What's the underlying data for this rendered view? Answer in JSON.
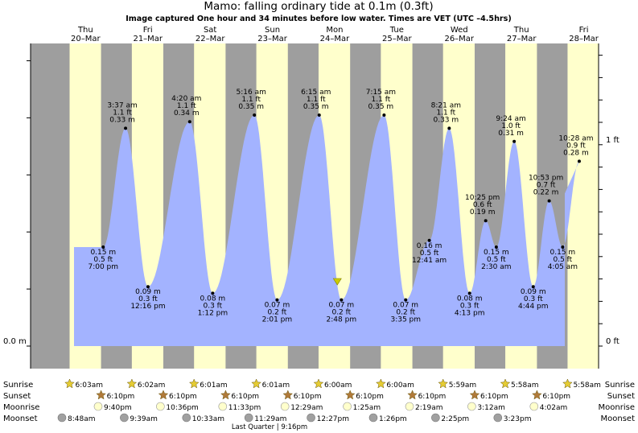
{
  "title": "Mamo: falling  ordinary tide at 0.1m (0.3ft)",
  "subtitle": "Image captured One hour and 34 minutes before low water. Times are VET (UTC –4.5hrs)",
  "colors": {
    "day": "#ffffcc",
    "night": "#9e9e9e",
    "water": "#a3b3ff",
    "header_red": "#ff0000",
    "sun": "#e5cc33",
    "sunset": "#b07a3a",
    "moonrise": "#ffffcc",
    "moonset": "#a0a0a0",
    "now_marker": "#cccc00"
  },
  "chart_data": {
    "type": "area",
    "title": "Mamo: falling  ordinary tide at 0.1m (0.3ft)",
    "subtitle": "Image captured One hour and 34 minutes before low water. Times are VET (UTC –4.5hrs)",
    "y_unit": "m",
    "ylim": [
      -0.02,
      0.45
    ],
    "left_axis_ticks": [
      {
        "value": 0.0,
        "label": "0.0 m"
      }
    ],
    "right_axis_ticks": [
      {
        "value": 0.0,
        "label": "0 ft"
      },
      {
        "value": 0.305,
        "label": "1 ft"
      }
    ],
    "days": [
      {
        "dow": "Thu",
        "date": "20–Mar"
      },
      {
        "dow": "Fri",
        "date": "21–Mar"
      },
      {
        "dow": "Sat",
        "date": "22–Mar"
      },
      {
        "dow": "Sun",
        "date": "23–Mar"
      },
      {
        "dow": "Mon",
        "date": "24–Mar"
      },
      {
        "dow": "Tue",
        "date": "25–Mar"
      },
      {
        "dow": "Wed",
        "date": "26–Mar"
      },
      {
        "dow": "Thu",
        "date": "27–Mar"
      },
      {
        "dow": "Fri",
        "date": "28–Mar"
      }
    ],
    "series": [
      {
        "values": [
          {
            "date": "20-Mar",
            "time": "7:00 pm",
            "m": 0.15,
            "m_label": "0.15 m",
            "ft_label": "0.5 ft",
            "time_label": "7:00 pm",
            "kind": "low"
          },
          {
            "date": "21-Mar",
            "time": "3:37 am",
            "m": 0.33,
            "m_label": "0.33 m",
            "ft_label": "1.1 ft",
            "time_label": "3:37 am",
            "kind": "high"
          },
          {
            "date": "21-Mar",
            "time": "12:16 pm",
            "m": 0.09,
            "m_label": "0.09 m",
            "ft_label": "0.3 ft",
            "time_label": "12:16 pm",
            "kind": "low"
          },
          {
            "date": "22-Mar",
            "time": "4:20 am",
            "m": 0.34,
            "m_label": "0.34 m",
            "ft_label": "1.1 ft",
            "time_label": "4:20 am",
            "kind": "high"
          },
          {
            "date": "22-Mar",
            "time": "1:12 pm",
            "m": 0.08,
            "m_label": "0.08 m",
            "ft_label": "0.3 ft",
            "time_label": "1:12 pm",
            "kind": "low"
          },
          {
            "date": "23-Mar",
            "time": "5:16 am",
            "m": 0.35,
            "m_label": "0.35 m",
            "ft_label": "1.1 ft",
            "time_label": "5:16 am",
            "kind": "high"
          },
          {
            "date": "23-Mar",
            "time": "2:01 pm",
            "m": 0.07,
            "m_label": "0.07 m",
            "ft_label": "0.2 ft",
            "time_label": "2:01 pm",
            "kind": "low"
          },
          {
            "date": "24-Mar",
            "time": "6:15 am",
            "m": 0.35,
            "m_label": "0.35 m",
            "ft_label": "1.1 ft",
            "time_label": "6:15 am",
            "kind": "high"
          },
          {
            "date": "24-Mar",
            "time": "2:48 pm",
            "m": 0.07,
            "m_label": "0.07 m",
            "ft_label": "0.2 ft",
            "time_label": "2:48 pm",
            "kind": "low"
          },
          {
            "date": "25-Mar",
            "time": "7:15 am",
            "m": 0.35,
            "m_label": "0.35 m",
            "ft_label": "1.1 ft",
            "time_label": "7:15 am",
            "kind": "high"
          },
          {
            "date": "25-Mar",
            "time": "3:35 pm",
            "m": 0.07,
            "m_label": "0.07 m",
            "ft_label": "0.2 ft",
            "time_label": "3:35 pm",
            "kind": "low"
          },
          {
            "date": "26-Mar",
            "time": "12:41 am",
            "m": 0.16,
            "m_label": "0.16 m",
            "ft_label": "0.5 ft",
            "time_label": "12:41 am",
            "kind": "low"
          },
          {
            "date": "26-Mar",
            "time": "8:21 am",
            "m": 0.33,
            "m_label": "0.33 m",
            "ft_label": "1.1 ft",
            "time_label": "8:21 am",
            "kind": "high"
          },
          {
            "date": "26-Mar",
            "time": "4:13 pm",
            "m": 0.08,
            "m_label": "0.08 m",
            "ft_label": "0.3 ft",
            "time_label": "4:13 pm",
            "kind": "low"
          },
          {
            "date": "26-Mar",
            "time": "10:25 pm",
            "m": 0.19,
            "m_label": "0.19 m",
            "ft_label": "0.6 ft",
            "time_label": "10:25 pm",
            "kind": "high"
          },
          {
            "date": "27-Mar",
            "time": "2:30 am",
            "m": 0.15,
            "m_label": "0.15 m",
            "ft_label": "0.5 ft",
            "time_label": "2:30 am",
            "kind": "low"
          },
          {
            "date": "27-Mar",
            "time": "9:24 am",
            "m": 0.31,
            "m_label": "0.31 m",
            "ft_label": "1.0 ft",
            "time_label": "9:24 am",
            "kind": "high"
          },
          {
            "date": "27-Mar",
            "time": "4:44 pm",
            "m": 0.09,
            "m_label": "0.09 m",
            "ft_label": "0.3 ft",
            "time_label": "4:44 pm",
            "kind": "low"
          },
          {
            "date": "27-Mar",
            "time": "10:53 pm",
            "m": 0.22,
            "m_label": "0.22 m",
            "ft_label": "0.7 ft",
            "time_label": "10:53 pm",
            "kind": "high"
          },
          {
            "date": "28-Mar",
            "time": "4:05 am",
            "m": 0.15,
            "m_label": "0.15 m",
            "ft_label": "0.5 ft",
            "time_label": "4:05 am",
            "kind": "low"
          },
          {
            "date": "28-Mar",
            "time": "10:28 am",
            "m": 0.28,
            "m_label": "0.28 m",
            "ft_label": "0.9 ft",
            "time_label": "10:28 am",
            "kind": "high"
          }
        ]
      }
    ],
    "now_marker": {
      "date": "24-Mar",
      "time": "1:14 pm"
    },
    "rows": {
      "labels": {
        "sunrise": "Sunrise",
        "sunset": "Sunset",
        "moonrise": "Moonrise",
        "moonset": "Moonset"
      },
      "sunrise": [
        "6:03am",
        "6:02am",
        "6:01am",
        "6:01am",
        "6:00am",
        "6:00am",
        "5:59am",
        "5:58am",
        "5:58am"
      ],
      "sunset": [
        "6:10pm",
        "6:10pm",
        "6:10pm",
        "6:10pm",
        "6:10pm",
        "6:10pm",
        "6:10pm",
        "6:10pm"
      ],
      "moonrise": [
        "9:40pm",
        "10:36pm",
        "11:33pm",
        "12:29am",
        "1:25am",
        "2:19am",
        "3:12am",
        "4:02am"
      ],
      "moonset": [
        "8:48am",
        "9:39am",
        "10:33am",
        "11:29am",
        "12:27pm",
        "1:26pm",
        "2:25pm",
        "3:23pm"
      ],
      "moon_phase": "Last Quarter | 9:16pm"
    }
  }
}
